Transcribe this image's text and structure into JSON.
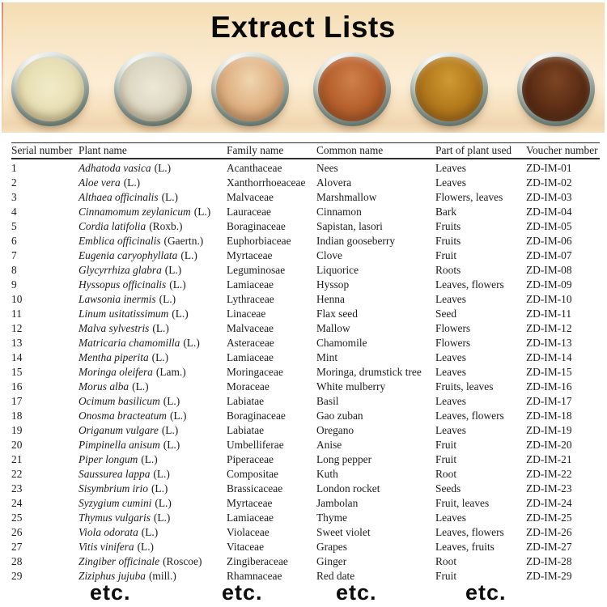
{
  "title": "Extract Lists",
  "photo": {
    "background_color": "#f8e6c6",
    "bowls": [
      {
        "name": "pale-cream-powder-dish",
        "light": "#f1ebc9",
        "color": "#e7dfb4",
        "edge": "#d3c99c",
        "heap": false
      },
      {
        "name": "ivory-powder-dish",
        "light": "#ece8d8",
        "color": "#ddd8c3",
        "edge": "#c4bda6",
        "heap": false
      },
      {
        "name": "tan-powder-dish",
        "light": "#f0d6ae",
        "color": "#dfb083",
        "edge": "#c4945f",
        "heap": true
      },
      {
        "name": "rust-brown-powder-dish",
        "light": "#cf8049",
        "color": "#b6602d",
        "edge": "#94481f",
        "heap": true
      },
      {
        "name": "ochre-powder-dish",
        "light": "#cf9a33",
        "color": "#b2781c",
        "edge": "#8f5d12",
        "heap": true
      },
      {
        "name": "dark-brown-powder-dish",
        "light": "#7c4423",
        "color": "#5d2d15",
        "edge": "#421d0c",
        "heap": true
      }
    ]
  },
  "table": {
    "columns": [
      "Serial number",
      "Plant name",
      "Family name",
      "Common name",
      "Part of plant used",
      "Voucher number"
    ],
    "rows": [
      {
        "serial": "1",
        "plant_italic": "Adhatoda vasica",
        "plant_roman": "(L.)",
        "family": "Acanthaceae",
        "common": "Nees",
        "part": "Leaves",
        "voucher": "ZD-IM-01"
      },
      {
        "serial": "2",
        "plant_italic": "Aloe vera",
        "plant_roman": "(L.)",
        "family": "Xanthorrhoeaceae",
        "common": "Alovera",
        "part": "Leaves",
        "voucher": "ZD-IM-02"
      },
      {
        "serial": "3",
        "plant_italic": "Althaea officinalis",
        "plant_roman": "(L.)",
        "family": "Malvaceae",
        "common": "Marshmallow",
        "part": "Flowers, leaves",
        "voucher": "ZD-IM-03"
      },
      {
        "serial": "4",
        "plant_italic": "Cinnamomum zeylanicum",
        "plant_roman": "(L.)",
        "family": "Lauraceae",
        "common": "Cinnamon",
        "part": "Bark",
        "voucher": "ZD-IM-04"
      },
      {
        "serial": "5",
        "plant_italic": "Cordia latifolia",
        "plant_roman": "(Roxb.)",
        "family": "Boraginaceae",
        "common": "Sapistan, lasori",
        "part": "Fruits",
        "voucher": "ZD-IM-05"
      },
      {
        "serial": "6",
        "plant_italic": "Emblica officinalis",
        "plant_roman": "(Gaertn.)",
        "family": "Euphorbiaceae",
        "common": "Indian gooseberry",
        "part": "Fruits",
        "voucher": "ZD-IM-06"
      },
      {
        "serial": "7",
        "plant_italic": "Eugenia caryophyllata",
        "plant_roman": "(L.)",
        "family": "Myrtaceae",
        "common": "Clove",
        "part": "Fruit",
        "voucher": "ZD-IM-07"
      },
      {
        "serial": "8",
        "plant_italic": "Glycyrrhiza glabra",
        "plant_roman": "(L.)",
        "family": "Leguminosae",
        "common": "Liquorice",
        "part": "Roots",
        "voucher": "ZD-IM-08"
      },
      {
        "serial": "9",
        "plant_italic": "Hyssopus officinalis",
        "plant_roman": "(L.)",
        "family": "Lamiaceae",
        "common": "Hyssop",
        "part": "Leaves, flowers",
        "voucher": "ZD-IM-09"
      },
      {
        "serial": "10",
        "plant_italic": "Lawsonia inermis",
        "plant_roman": "(L.)",
        "family": "Lythraceae",
        "common": "Henna",
        "part": "Leaves",
        "voucher": "ZD-IM-10"
      },
      {
        "serial": "11",
        "plant_italic": "Linum usitatissimum",
        "plant_roman": "(L.)",
        "family": "Linaceae",
        "common": "Flax seed",
        "part": "Seed",
        "voucher": "ZD-IM-11"
      },
      {
        "serial": "12",
        "plant_italic": "Malva sylvestris",
        "plant_roman": "(L.)",
        "family": "Malvaceae",
        "common": "Mallow",
        "part": "Flowers",
        "voucher": "ZD-IM-12"
      },
      {
        "serial": "13",
        "plant_italic": "Matricaria chamomilla",
        "plant_roman": "(L.)",
        "family": "Asteraceae",
        "common": "Chamomile",
        "part": "Flowers",
        "voucher": "ZD-IM-13"
      },
      {
        "serial": "14",
        "plant_italic": "Mentha piperita",
        "plant_roman": "(L.)",
        "family": "Lamiaceae",
        "common": "Mint",
        "part": "Leaves",
        "voucher": "ZD-IM-14"
      },
      {
        "serial": "15",
        "plant_italic": "Moringa oleifera",
        "plant_roman": "(Lam.)",
        "family": "Moringaceae",
        "common": "Moringa, drumstick tree",
        "part": "Leaves",
        "voucher": "ZD-IM-15"
      },
      {
        "serial": "16",
        "plant_italic": "Morus alba",
        "plant_roman": "(L.)",
        "family": "Moraceae",
        "common": "White mulberry",
        "part": "Fruits, leaves",
        "voucher": "ZD-IM-16"
      },
      {
        "serial": "17",
        "plant_italic": "Ocimum basilicum",
        "plant_roman": "(L.)",
        "family": "Labiatae",
        "common": "Basil",
        "part": "Leaves",
        "voucher": "ZD-IM-17"
      },
      {
        "serial": "18",
        "plant_italic": "Onosma bracteatum",
        "plant_roman": "(L.)",
        "family": "Boraginaceae",
        "common": "Gao zuban",
        "part": "Leaves, flowers",
        "voucher": "ZD-IM-18"
      },
      {
        "serial": "19",
        "plant_italic": "Origanum vulgare",
        "plant_roman": "(L.)",
        "family": "Labiatae",
        "common": "Oregano",
        "part": "Leaves",
        "voucher": "ZD-IM-19"
      },
      {
        "serial": "20",
        "plant_italic": "Pimpinella anisum",
        "plant_roman": "(L.)",
        "family": "Umbelliferae",
        "common": "Anise",
        "part": "Fruit",
        "voucher": "ZD-IM-20"
      },
      {
        "serial": "21",
        "plant_italic": "Piper longum",
        "plant_roman": "(L.)",
        "family": "Piperaceae",
        "common": "Long pepper",
        "part": "Fruit",
        "voucher": "ZD-IM-21"
      },
      {
        "serial": "22",
        "plant_italic": "Saussurea lappa",
        "plant_roman": "(L.)",
        "family": "Compositae",
        "common": "Kuth",
        "part": "Root",
        "voucher": "ZD-IM-22"
      },
      {
        "serial": "23",
        "plant_italic": "Sisymbrium irio",
        "plant_roman": "(L.)",
        "family": "Brassicaceae",
        "common": "London rocket",
        "part": "Seeds",
        "voucher": "ZD-IM-23"
      },
      {
        "serial": "24",
        "plant_italic": "Syzygium cumini",
        "plant_roman": "(L.)",
        "family": "Myrtaceae",
        "common": "Jambolan",
        "part": "Fruit, leaves",
        "voucher": "ZD-IM-24"
      },
      {
        "serial": "25",
        "plant_italic": "Thymus vulgaris",
        "plant_roman": "(L.)",
        "family": "Lamiaceae",
        "common": "Thyme",
        "part": "Leaves",
        "voucher": "ZD-IM-25"
      },
      {
        "serial": "26",
        "plant_italic": "Viola odorata",
        "plant_roman": "(L.)",
        "family": "Violaceae",
        "common": "Sweet violet",
        "part": "Leaves, flowers",
        "voucher": "ZD-IM-26"
      },
      {
        "serial": "27",
        "plant_italic": "Vitis vinifera",
        "plant_roman": "(L.)",
        "family": "Vitaceae",
        "common": "Grapes",
        "part": "Leaves, fruits",
        "voucher": "ZD-IM-27"
      },
      {
        "serial": "28",
        "plant_italic": "Zingiber officinale",
        "plant_roman": "(Roscoe)",
        "family": "Zingiberaceae",
        "common": "Ginger",
        "part": "Root",
        "voucher": "ZD-IM-28"
      },
      {
        "serial": "29",
        "plant_italic": "Ziziphus jujuba",
        "plant_roman": "(mill.)",
        "family": "Rhamnaceae",
        "common": "Red date",
        "part": "Fruit",
        "voucher": "ZD-IM-29"
      }
    ]
  },
  "footer": {
    "etc_labels": [
      "etc.",
      "etc.",
      "etc.",
      "etc."
    ]
  }
}
